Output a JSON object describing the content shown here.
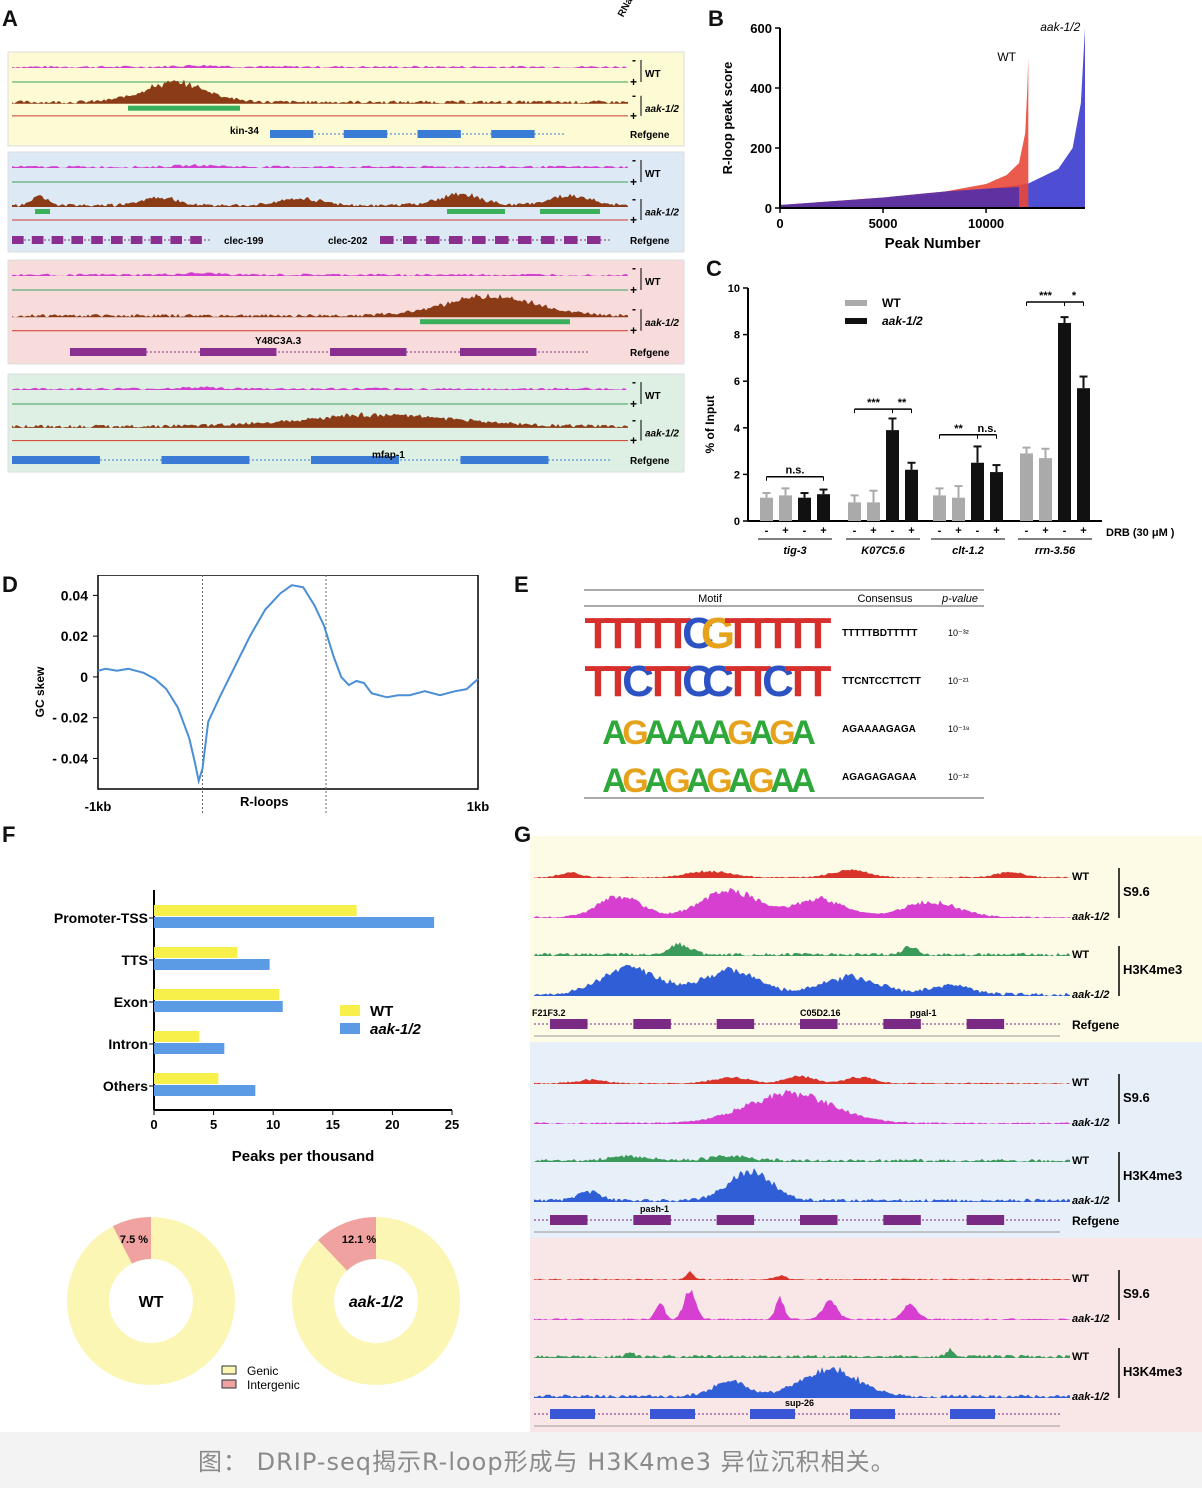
{
  "caption": "图： DRIP-seq揭示R-loop形成与 H3K4me3 异位沉积相关。",
  "panel_a": {
    "label": "A",
    "rnase_label": "RNase H",
    "row_labels": {
      "wt": "WT",
      "mut": "aak-1/2",
      "ref": "Refgene",
      "minus": "-",
      "plus": "+"
    },
    "loci": [
      {
        "genes": [
          "kin-34"
        ],
        "bg": "#fdfbd3"
      },
      {
        "genes": [
          "clec-199",
          "clec-202"
        ],
        "bg": "#dde9f5"
      },
      {
        "genes": [
          "Y48C3A.3"
        ],
        "bg": "#f8dcdc"
      },
      {
        "genes": [
          "mfap-1"
        ],
        "bg": "#ddf0e3"
      }
    ]
  },
  "panel_b": {
    "label": "B",
    "chart_data": {
      "type": "area",
      "xlabel": "Peak Number",
      "ylabel": "R-loop peak score",
      "xlim": [
        0,
        14800
      ],
      "ylim": [
        0,
        600
      ],
      "xticks": [
        "0",
        "5000",
        "10000"
      ],
      "yticks": [
        "0",
        "200",
        "400",
        "600"
      ],
      "series": [
        {
          "name": "WT",
          "color": "#e8483a",
          "x": [
            0,
            2000,
            5000,
            8000,
            10000,
            11000,
            11600,
            11900,
            12000,
            12050
          ],
          "y": [
            10,
            20,
            35,
            55,
            80,
            110,
            150,
            250,
            400,
            500
          ]
        },
        {
          "name": "aak-1/2",
          "color": "#3b3bd0",
          "x": [
            0,
            3000,
            6000,
            9000,
            12000,
            13500,
            14200,
            14600,
            14800
          ],
          "y": [
            10,
            20,
            35,
            55,
            80,
            130,
            200,
            350,
            600
          ]
        }
      ]
    }
  },
  "panel_c": {
    "label": "C",
    "chart_data": {
      "type": "bar",
      "ylabel": "% of Input",
      "ylim": [
        0,
        10
      ],
      "yticks": [
        "0",
        "2",
        "4",
        "6",
        "8",
        "10"
      ],
      "drb_label": "DRB (30 μM )",
      "drb_signs": [
        "-",
        "+",
        "-",
        "+"
      ],
      "legend": [
        {
          "name": "WT",
          "color": "#aaaaaa"
        },
        {
          "name": "aak-1/2",
          "color": "#111111"
        }
      ],
      "groups": [
        {
          "name": "tig-3",
          "values": [
            1.0,
            1.1,
            1.0,
            1.15
          ],
          "errors": [
            0.2,
            0.3,
            0.2,
            0.2
          ],
          "sig": [
            {
              "text": "n.s.",
              "from": 0,
              "to": 3,
              "y": 1.9
            }
          ]
        },
        {
          "name": "K07C5.6",
          "values": [
            0.8,
            0.8,
            3.9,
            2.2
          ],
          "errors": [
            0.3,
            0.5,
            0.5,
            0.3
          ],
          "sig": [
            {
              "text": "***",
              "from": 0,
              "to": 2,
              "y": 4.8
            },
            {
              "text": "**",
              "from": 2,
              "to": 3,
              "y": 4.8
            }
          ]
        },
        {
          "name": "clt-1.2",
          "values": [
            1.1,
            1.0,
            2.5,
            2.1
          ],
          "errors": [
            0.3,
            0.5,
            0.7,
            0.3
          ],
          "sig": [
            {
              "text": "**",
              "from": 0,
              "to": 2,
              "y": 3.7
            },
            {
              "text": "n.s.",
              "from": 2,
              "to": 3,
              "y": 3.7
            }
          ]
        },
        {
          "name": "rrn-3.56",
          "values": [
            2.9,
            2.7,
            8.5,
            5.7
          ],
          "errors": [
            0.25,
            0.4,
            0.25,
            0.5
          ],
          "sig": [
            {
              "text": "***",
              "from": 0,
              "to": 2,
              "y": 9.4
            },
            {
              "text": "*",
              "from": 2,
              "to": 3,
              "y": 9.4
            }
          ]
        }
      ]
    }
  },
  "panel_d": {
    "label": "D",
    "chart_data": {
      "type": "line",
      "ylabel": "GC skew",
      "ylim": [
        -0.055,
        0.05
      ],
      "yticks": [
        "0.04",
        "0.02",
        "0",
        "- 0.02",
        "- 0.04"
      ],
      "ytick_values": [
        0.04,
        0.02,
        0,
        -0.02,
        -0.04
      ],
      "xtick_labels": [
        "-1kb",
        "R-loops",
        "1kb"
      ],
      "color": "#4a8fd4",
      "x": [
        0,
        2,
        5,
        8,
        12,
        15,
        18,
        21,
        24,
        25.5,
        26.5,
        27.5,
        29,
        32,
        36,
        40,
        44,
        48,
        51,
        54,
        57,
        59.5,
        62,
        64,
        66,
        68,
        70,
        72,
        74,
        76,
        79,
        82,
        86,
        90,
        94,
        97,
        100
      ],
      "y": [
        0.003,
        0.004,
        0.003,
        0.004,
        0.002,
        -0.001,
        -0.006,
        -0.015,
        -0.03,
        -0.042,
        -0.051,
        -0.045,
        -0.022,
        -0.01,
        0.005,
        0.02,
        0.033,
        0.041,
        0.045,
        0.044,
        0.035,
        0.025,
        0.01,
        0.0,
        -0.004,
        -0.002,
        -0.003,
        -0.008,
        -0.009,
        -0.01,
        -0.009,
        -0.009,
        -0.007,
        -0.009,
        -0.007,
        -0.006,
        -0.001
      ]
    }
  },
  "panel_e": {
    "label": "E",
    "headers": [
      "Motif",
      "Consensus",
      "p-value"
    ],
    "rows": [
      {
        "consensus": "TTTTTBDTTTTT",
        "pvalue": "10⁻³²",
        "logo": "TTTTTCGTTTTT"
      },
      {
        "consensus": "TTCNTCCTTCTT",
        "pvalue": "10⁻²¹",
        "logo": "TTCTTCCTTCTT"
      },
      {
        "consensus": "AGAAAAGAGA",
        "pvalue": "10⁻¹⁸",
        "logo": "AGAAAAGAGA"
      },
      {
        "consensus": "AGAGAGAGAA",
        "pvalue": "10⁻¹²",
        "logo": "AGAGAGAGAA"
      }
    ]
  },
  "panel_f": {
    "label": "F",
    "chart_data": [
      {
        "type": "bar",
        "orientation": "horizontal",
        "xlabel": "Peaks per thousand",
        "xlim": [
          0,
          25
        ],
        "xticks": [
          "0",
          "5",
          "10",
          "15",
          "20",
          "25"
        ],
        "categories": [
          "Promoter-TSS",
          "TTS",
          "Exon",
          "Intron",
          "Others"
        ],
        "series": [
          {
            "name": "WT",
            "color": "#f7f04a",
            "values": [
              17.0,
              7.0,
              10.5,
              3.8,
              5.4
            ]
          },
          {
            "name": "aak-1/2",
            "color": "#5b9be6",
            "values": [
              23.5,
              9.7,
              10.8,
              5.9,
              8.5
            ]
          }
        ]
      },
      {
        "type": "pie",
        "donuts": [
          {
            "center": "WT",
            "intergenic_pct": 7.5,
            "label": "7.5 %"
          },
          {
            "center": "aak-1/2",
            "intergenic_pct": 12.1,
            "label": "12.1 %"
          }
        ],
        "legend": [
          {
            "name": "Genic",
            "color": "#fbf6b4"
          },
          {
            "name": "Intergenic",
            "color": "#f0a2a0"
          }
        ]
      }
    ]
  },
  "panel_g": {
    "label": "G",
    "labels": {
      "wt": "WT",
      "mut": "aak-1/2",
      "s96": "S9.6",
      "h3": "H3K4me3",
      "ref": "Refgene"
    },
    "loci": [
      {
        "bg": "#fdfbe6",
        "genes": [
          "F21F3.2",
          "C05D2.16",
          "pgal-1"
        ]
      },
      {
        "bg": "#e7f0f8",
        "genes": [
          "pash-1"
        ]
      },
      {
        "bg": "#f9e6e6",
        "genes": [
          "sup-26"
        ]
      }
    ]
  }
}
